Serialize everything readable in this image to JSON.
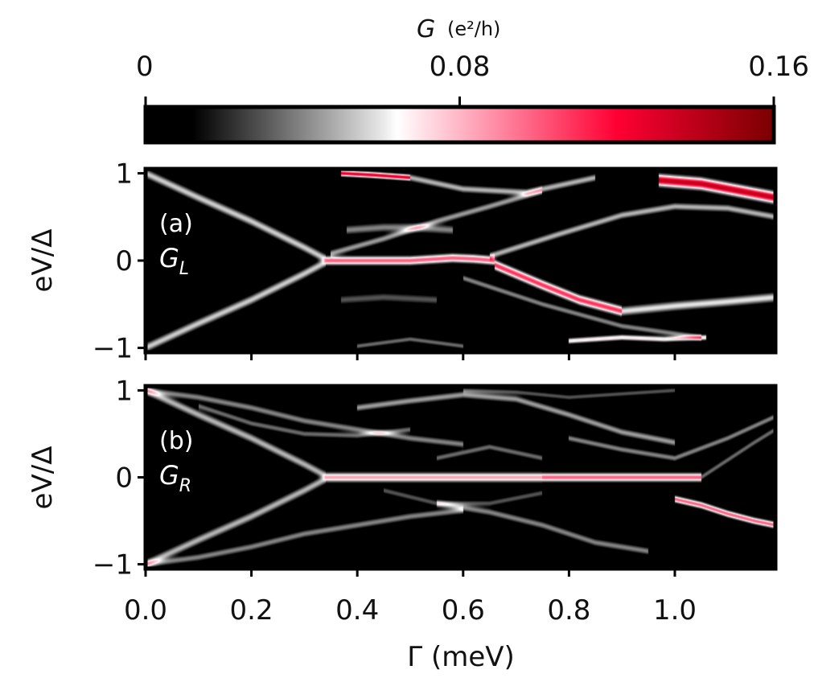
{
  "chart_data": {
    "type": "heatmap",
    "colorbar": {
      "title_symbol": "G",
      "title_unit": "(e²/h)",
      "ticks": [
        0,
        0.08,
        0.16
      ],
      "tick_labels": [
        "0",
        "0.08",
        "0.16"
      ],
      "range": [
        0,
        0.16
      ],
      "colormap": [
        {
          "value": 0.0,
          "color": "#000000"
        },
        {
          "value": 0.012,
          "color": "#000000"
        },
        {
          "value": 0.03,
          "color": "#555555"
        },
        {
          "value": 0.06,
          "color": "#e6e6e6"
        },
        {
          "value": 0.064,
          "color": "#ffffff"
        },
        {
          "value": 0.085,
          "color": "#ff9fb4"
        },
        {
          "value": 0.12,
          "color": "#ff0033"
        },
        {
          "value": 0.16,
          "color": "#7a0000"
        }
      ]
    },
    "x_axis": {
      "label": "Γ (meV)",
      "range": [
        0.0,
        1.19
      ],
      "ticks": [
        0.0,
        0.2,
        0.4,
        0.6,
        0.8,
        1.0
      ],
      "tick_labels": [
        "0.0",
        "0.2",
        "0.4",
        "0.6",
        "0.8",
        "1.0"
      ]
    },
    "panels": [
      {
        "id": "a",
        "tag": "(a)",
        "quantity": "G",
        "subscript": "L",
        "ylabel": "eV/Δ",
        "ylim": [
          -1.05,
          1.05
        ],
        "yticks": [
          1,
          0,
          -1
        ],
        "ytick_labels": [
          "1",
          "0",
          "−1"
        ],
        "curves": [
          {
            "x": [
              0.0,
              0.1,
              0.2,
              0.3,
              0.34
            ],
            "y": [
              1.0,
              0.72,
              0.45,
              0.15,
              0.02
            ],
            "g": 0.055,
            "w": 0.05
          },
          {
            "x": [
              0.0,
              0.1,
              0.2,
              0.3,
              0.34
            ],
            "y": [
              -1.0,
              -0.72,
              -0.45,
              -0.15,
              -0.02
            ],
            "g": 0.055,
            "w": 0.05
          },
          {
            "x": [
              0.34,
              0.42,
              0.5,
              0.58,
              0.62,
              0.66
            ],
            "y": [
              0.0,
              0.0,
              0.0,
              0.03,
              0.02,
              0.0
            ],
            "g": 0.1,
            "w": 0.045
          },
          {
            "x": [
              0.66,
              0.75,
              0.82,
              0.9
            ],
            "y": [
              -0.05,
              -0.28,
              -0.45,
              -0.58
            ],
            "g": 0.11,
            "w": 0.05
          },
          {
            "x": [
              0.9,
              1.0,
              1.1,
              1.19
            ],
            "y": [
              -0.58,
              -0.52,
              -0.47,
              -0.42
            ],
            "g": 0.06,
            "w": 0.05
          },
          {
            "x": [
              0.35,
              0.45,
              0.55,
              0.65,
              0.75
            ],
            "y": [
              0.08,
              0.25,
              0.45,
              0.62,
              0.8
            ],
            "g": 0.045,
            "w": 0.04
          },
          {
            "x": [
              0.65,
              0.78,
              0.9,
              1.0,
              1.1,
              1.19
            ],
            "y": [
              0.05,
              0.3,
              0.52,
              0.62,
              0.6,
              0.5
            ],
            "g": 0.05,
            "w": 0.04
          },
          {
            "x": [
              0.38,
              0.45,
              0.5,
              0.58
            ],
            "y": [
              0.35,
              0.38,
              0.38,
              0.35
            ],
            "g": 0.04,
            "w": 0.05
          },
          {
            "x": [
              0.37,
              0.45,
              0.55
            ],
            "y": [
              -0.45,
              -0.42,
              -0.45
            ],
            "g": 0.03,
            "w": 0.05
          },
          {
            "x": [
              0.37,
              0.43,
              0.5
            ],
            "y": [
              1.0,
              0.98,
              0.95
            ],
            "g": 0.13,
            "w": 0.03
          },
          {
            "x": [
              0.5,
              0.6,
              0.72,
              0.85
            ],
            "y": [
              0.95,
              0.82,
              0.78,
              0.95
            ],
            "g": 0.05,
            "w": 0.04
          },
          {
            "x": [
              0.97,
              1.05,
              1.12,
              1.19
            ],
            "y": [
              0.92,
              0.88,
              0.8,
              0.72
            ],
            "g": 0.14,
            "w": 0.06
          },
          {
            "x": [
              0.8,
              0.9,
              0.98,
              1.06
            ],
            "y": [
              -0.92,
              -0.88,
              -0.9,
              -0.88
            ],
            "g": 0.07,
            "w": 0.03
          },
          {
            "x": [
              0.4,
              0.5,
              0.6
            ],
            "y": [
              -0.98,
              -0.9,
              -0.98
            ],
            "g": 0.035,
            "w": 0.03
          },
          {
            "x": [
              0.6,
              0.75,
              0.9,
              1.05
            ],
            "y": [
              -0.2,
              -0.5,
              -0.75,
              -0.88
            ],
            "g": 0.04,
            "w": 0.035
          }
        ]
      },
      {
        "id": "b",
        "tag": "(b)",
        "quantity": "G",
        "subscript": "R",
        "ylabel": "eV/Δ",
        "ylim": [
          -1.05,
          1.05
        ],
        "yticks": [
          1,
          0,
          -1
        ],
        "ytick_labels": [
          "1",
          "0",
          "−1"
        ],
        "curves": [
          {
            "x": [
              0.0,
              0.1,
              0.2,
              0.3,
              0.34
            ],
            "y": [
              1.0,
              0.72,
              0.45,
              0.15,
              0.02
            ],
            "g": 0.05,
            "w": 0.05
          },
          {
            "x": [
              0.0,
              0.1,
              0.2,
              0.3,
              0.34
            ],
            "y": [
              -1.0,
              -0.72,
              -0.45,
              -0.15,
              -0.02
            ],
            "g": 0.05,
            "w": 0.05
          },
          {
            "x": [
              0.34,
              0.45,
              0.55,
              0.65,
              0.75
            ],
            "y": [
              0.0,
              0.0,
              0.0,
              0.0,
              0.0
            ],
            "g": 0.085,
            "w": 0.05
          },
          {
            "x": [
              0.75,
              0.85,
              0.95,
              1.05
            ],
            "y": [
              0.0,
              0.0,
              0.0,
              0.0
            ],
            "g": 0.1,
            "w": 0.045
          },
          {
            "x": [
              0.0,
              0.1,
              0.2,
              0.3,
              0.4,
              0.5,
              0.6
            ],
            "y": [
              1.0,
              0.92,
              0.8,
              0.65,
              0.55,
              0.45,
              0.38
            ],
            "g": 0.04,
            "w": 0.04
          },
          {
            "x": [
              0.1,
              0.2,
              0.3,
              0.4,
              0.5
            ],
            "y": [
              0.82,
              0.62,
              0.5,
              0.48,
              0.55
            ],
            "g": 0.035,
            "w": 0.035
          },
          {
            "x": [
              0.0,
              0.1,
              0.2,
              0.3,
              0.4,
              0.5,
              0.6
            ],
            "y": [
              -1.0,
              -0.92,
              -0.8,
              -0.65,
              -0.55,
              -0.45,
              -0.38
            ],
            "g": 0.04,
            "w": 0.04
          },
          {
            "x": [
              0.4,
              0.5,
              0.6,
              0.7,
              0.8,
              0.9,
              1.0
            ],
            "y": [
              0.8,
              0.88,
              0.95,
              0.9,
              0.72,
              0.52,
              0.4
            ],
            "g": 0.045,
            "w": 0.04
          },
          {
            "x": [
              0.55,
              0.65,
              0.75,
              0.85,
              0.95
            ],
            "y": [
              -0.3,
              -0.4,
              -0.55,
              -0.75,
              -0.85
            ],
            "g": 0.04,
            "w": 0.04
          },
          {
            "x": [
              1.0,
              1.05,
              1.1,
              1.15,
              1.19
            ],
            "y": [
              -0.25,
              -0.32,
              -0.42,
              -0.5,
              -0.55
            ],
            "g": 0.1,
            "w": 0.035
          },
          {
            "x": [
              0.8,
              0.9,
              1.0,
              1.1,
              1.19
            ],
            "y": [
              0.45,
              0.32,
              0.22,
              0.45,
              0.7
            ],
            "g": 0.04,
            "w": 0.035
          },
          {
            "x": [
              1.05,
              1.1,
              1.15,
              1.19
            ],
            "y": [
              0.0,
              0.2,
              0.4,
              0.55
            ],
            "g": 0.035,
            "w": 0.035
          },
          {
            "x": [
              0.45,
              0.55,
              0.65,
              0.75
            ],
            "y": [
              -0.15,
              -0.3,
              -0.3,
              -0.18
            ],
            "g": 0.03,
            "w": 0.035
          },
          {
            "x": [
              0.55,
              0.65,
              0.75
            ],
            "y": [
              0.22,
              0.35,
              0.22
            ],
            "g": 0.035,
            "w": 0.035
          },
          {
            "x": [
              0.6,
              0.7,
              0.8,
              0.9,
              1.0
            ],
            "y": [
              1.0,
              0.98,
              0.92,
              0.96,
              1.0
            ],
            "g": 0.03,
            "w": 0.03
          }
        ]
      }
    ]
  }
}
